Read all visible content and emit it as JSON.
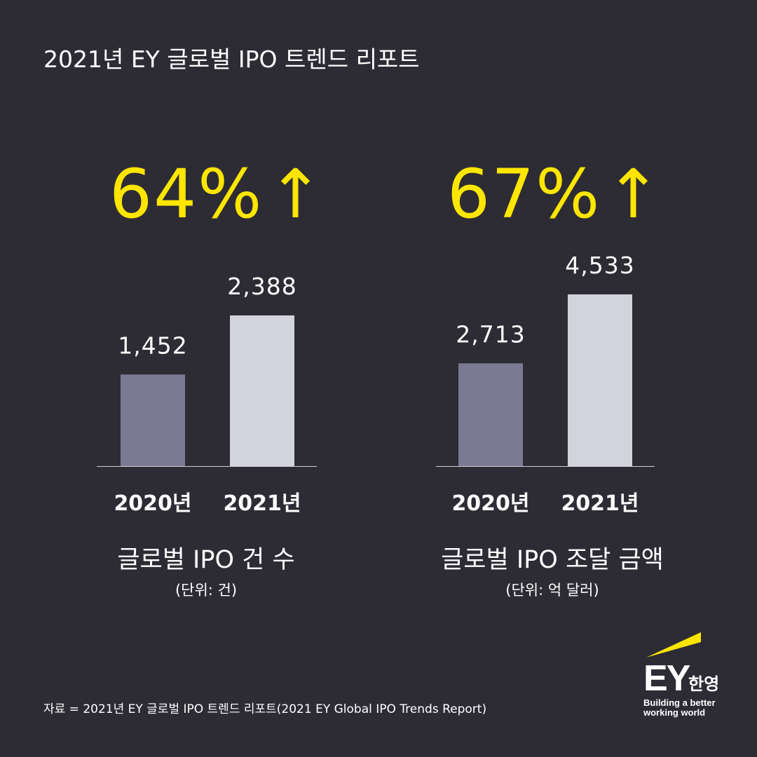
{
  "title": "2021년 EY 글로벌 IPO 트렌드 리포트",
  "chart_data": [
    {
      "type": "bar",
      "title": "글로벌 IPO 건 수",
      "unit_label": "(단위: 건)",
      "growth": "64%",
      "growth_arrow": "↑",
      "categories": [
        "2020년",
        "2021년"
      ],
      "value_labels": [
        "1,452",
        "2,388"
      ],
      "values": [
        1452,
        2388
      ],
      "colors": [
        "#7b7a93",
        "#d3d3df"
      ]
    },
    {
      "type": "bar",
      "title": "글로벌 IPO 조달 금액",
      "unit_label": "(단위: 억 달러)",
      "growth": "67%",
      "growth_arrow": "↑",
      "categories": [
        "2020년",
        "2021년"
      ],
      "value_labels": [
        "2,713",
        "4,533"
      ],
      "values": [
        2713,
        4533
      ],
      "colors": [
        "#7b7a93",
        "#d3d3df"
      ]
    }
  ],
  "source": "자료 = 2021년 EY 글로벌 IPO 트렌드 리포트(2021 EY Global IPO Trends Report)",
  "logo": {
    "wordmark": "EY",
    "korean": "한영",
    "tagline_line1": "Building a better",
    "tagline_line2": "working world",
    "accent_color": "#ffe600"
  },
  "colors": {
    "background": "#2d2c35",
    "accent": "#ffe600",
    "text": "#ffffff"
  }
}
